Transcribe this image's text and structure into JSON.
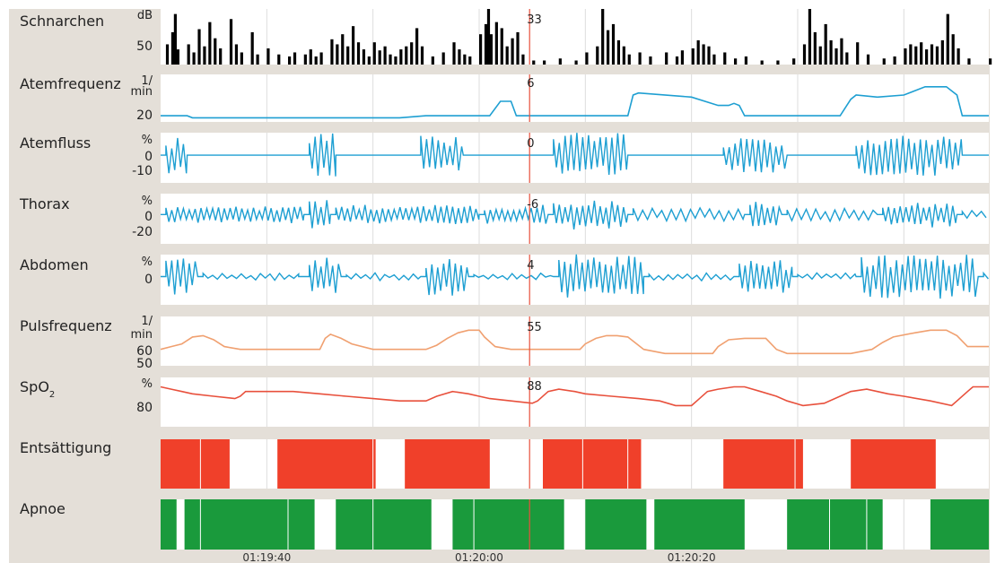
{
  "colors": {
    "panel_bg": "#e4dfd8",
    "plot_bg": "#ffffff",
    "grid": "#dcdcdc",
    "snore": "#000000",
    "blue": "#1e9fd2",
    "pulse": "#f0a070",
    "spo2": "#e8503c",
    "desat": "#f0402a",
    "apnea": "#1a9a3c",
    "cursor": "#e8503c"
  },
  "time_axis": {
    "labels": [
      "01:19:40",
      "01:20:00",
      "01:20:20"
    ],
    "label_x": [
      20,
      60,
      100
    ]
  },
  "cursor_x": 69.5,
  "chart_data": [
    {
      "type": "bar",
      "name": "Schnarchen",
      "unit": "dB",
      "ticks": [
        "50"
      ],
      "tick_values": [
        50
      ],
      "ylim": [
        40,
        95
      ],
      "cursor_value": "33",
      "bars": [
        [
          1,
          60
        ],
        [
          2,
          72
        ],
        [
          2.5,
          90
        ],
        [
          3,
          55
        ],
        [
          5,
          60
        ],
        [
          6,
          52
        ],
        [
          7,
          75
        ],
        [
          8,
          58
        ],
        [
          9,
          82
        ],
        [
          10,
          66
        ],
        [
          11,
          56
        ],
        [
          13,
          85
        ],
        [
          14,
          60
        ],
        [
          15,
          52
        ],
        [
          17,
          72
        ],
        [
          18,
          50
        ],
        [
          20,
          56
        ],
        [
          22,
          50
        ],
        [
          24,
          48
        ],
        [
          25,
          52
        ],
        [
          27,
          50
        ],
        [
          28,
          55
        ],
        [
          29,
          48
        ],
        [
          30,
          52
        ],
        [
          32,
          65
        ],
        [
          33,
          60
        ],
        [
          34,
          70
        ],
        [
          35,
          58
        ],
        [
          36,
          78
        ],
        [
          37,
          62
        ],
        [
          38,
          55
        ],
        [
          39,
          48
        ],
        [
          40,
          62
        ],
        [
          41,
          54
        ],
        [
          42,
          58
        ],
        [
          43,
          50
        ],
        [
          44,
          48
        ],
        [
          45,
          55
        ],
        [
          46,
          58
        ],
        [
          47,
          62
        ],
        [
          48,
          76
        ],
        [
          49,
          58
        ],
        [
          51,
          48
        ],
        [
          53,
          52
        ],
        [
          55,
          62
        ],
        [
          56,
          55
        ],
        [
          57,
          50
        ],
        [
          58,
          48
        ],
        [
          60,
          70
        ],
        [
          61,
          80
        ],
        [
          61.5,
          95
        ],
        [
          62,
          70
        ],
        [
          63,
          82
        ],
        [
          64,
          76
        ],
        [
          65,
          58
        ],
        [
          66,
          66
        ],
        [
          67,
          72
        ],
        [
          68,
          50
        ],
        [
          70,
          44
        ],
        [
          72,
          44
        ],
        [
          75,
          46
        ],
        [
          78,
          44
        ],
        [
          80,
          52
        ],
        [
          82,
          58
        ],
        [
          83,
          95
        ],
        [
          84,
          74
        ],
        [
          85,
          80
        ],
        [
          86,
          64
        ],
        [
          87,
          58
        ],
        [
          88,
          50
        ],
        [
          90,
          52
        ],
        [
          92,
          48
        ],
        [
          95,
          52
        ],
        [
          97,
          48
        ],
        [
          98,
          54
        ],
        [
          100,
          56
        ],
        [
          101,
          64
        ],
        [
          102,
          60
        ],
        [
          103,
          58
        ],
        [
          104,
          50
        ],
        [
          106,
          52
        ],
        [
          108,
          46
        ],
        [
          110,
          48
        ],
        [
          113,
          44
        ],
        [
          116,
          44
        ],
        [
          119,
          46
        ],
        [
          121,
          60
        ],
        [
          122,
          95
        ],
        [
          123,
          72
        ],
        [
          124,
          58
        ],
        [
          125,
          80
        ],
        [
          126,
          64
        ],
        [
          127,
          56
        ],
        [
          128,
          66
        ],
        [
          129,
          52
        ],
        [
          131,
          62
        ],
        [
          133,
          50
        ],
        [
          136,
          46
        ],
        [
          138,
          48
        ],
        [
          140,
          56
        ],
        [
          141,
          60
        ],
        [
          142,
          58
        ],
        [
          143,
          62
        ],
        [
          144,
          55
        ],
        [
          145,
          60
        ],
        [
          146,
          58
        ],
        [
          147,
          64
        ],
        [
          148,
          90
        ],
        [
          149,
          70
        ],
        [
          150,
          56
        ],
        [
          152,
          46
        ],
        [
          156,
          46
        ]
      ]
    },
    {
      "type": "line",
      "name": "Atemfrequenz",
      "unit": "1/\nmin",
      "ticks": [
        "20"
      ],
      "tick_values": [
        20
      ],
      "ylim": [
        17,
        40
      ],
      "cursor_value": "6",
      "x": [
        0,
        5,
        6,
        45,
        50,
        62,
        64,
        66,
        67,
        68,
        72,
        75,
        80,
        85,
        88,
        89,
        90,
        100,
        105,
        107,
        108,
        109,
        110,
        112,
        128,
        130,
        131,
        135,
        140,
        144,
        148,
        150,
        151,
        153,
        156
      ],
      "y": [
        20,
        20,
        19,
        19,
        20,
        20,
        27,
        27,
        20,
        20,
        20,
        20,
        20,
        20,
        20,
        30,
        31,
        29,
        25,
        25,
        26,
        25,
        20,
        20,
        20,
        28,
        30,
        29,
        30,
        34,
        34,
        30,
        20,
        20,
        20
      ]
    },
    {
      "type": "line",
      "name": "Atemfluss",
      "unit": "%",
      "ticks": [
        "0",
        "-10"
      ],
      "tick_values": [
        0,
        -10
      ],
      "ylim": [
        -16,
        13
      ],
      "cursor_value": "0",
      "bursts": [
        [
          1,
          5,
          10
        ],
        [
          28,
          33,
          12
        ],
        [
          49,
          57,
          11
        ],
        [
          74,
          88,
          13
        ],
        [
          106,
          118,
          10
        ],
        [
          131,
          151,
          12
        ]
      ],
      "baseline": [
        [
          0,
          0
        ],
        [
          20,
          0
        ],
        [
          40,
          0
        ],
        [
          64,
          0
        ],
        [
          70,
          0
        ],
        [
          90,
          0
        ],
        [
          100,
          0
        ],
        [
          104,
          0
        ],
        [
          125,
          0
        ],
        [
          156,
          0
        ]
      ]
    },
    {
      "type": "line",
      "name": "Thorax",
      "unit": "%",
      "ticks": [
        "0",
        "-20"
      ],
      "tick_values": [
        0,
        -20
      ],
      "ylim": [
        -28,
        20
      ],
      "cursor_value": "-6",
      "bursts": [
        [
          1,
          27,
          8
        ],
        [
          28,
          32,
          14
        ],
        [
          33,
          60,
          9
        ],
        [
          61,
          73,
          9
        ],
        [
          74,
          88,
          14
        ],
        [
          89,
          110,
          6
        ],
        [
          111,
          117,
          12
        ],
        [
          118,
          135,
          6
        ],
        [
          136,
          150,
          12
        ],
        [
          151,
          156,
          4
        ]
      ]
    },
    {
      "type": "line",
      "name": "Abdomen",
      "unit": "%",
      "ticks": [
        "0"
      ],
      "tick_values": [
        0
      ],
      "ylim": [
        -18,
        14
      ],
      "cursor_value": "4",
      "bursts": [
        [
          1,
          7,
          12
        ],
        [
          8,
          26,
          2
        ],
        [
          28,
          34,
          12
        ],
        [
          35,
          49,
          2
        ],
        [
          50,
          58,
          12
        ],
        [
          59,
          74,
          2
        ],
        [
          75,
          91,
          14
        ],
        [
          92,
          108,
          2
        ],
        [
          109,
          119,
          10
        ],
        [
          120,
          131,
          2
        ],
        [
          132,
          154,
          14
        ],
        [
          155,
          156,
          2
        ]
      ]
    },
    {
      "type": "line",
      "name": "Pulsfrequenz",
      "unit": "1/\nmin",
      "ticks": [
        "60",
        "50"
      ],
      "tick_values": [
        60,
        50
      ],
      "ylim": [
        46,
        82
      ],
      "cursor_value": "55",
      "x": [
        0,
        2,
        4,
        6,
        8,
        10,
        12,
        15,
        20,
        25,
        30,
        31,
        32,
        34,
        36,
        40,
        45,
        50,
        52,
        54,
        56,
        58,
        60,
        61,
        63,
        66,
        70,
        75,
        79,
        80,
        82,
        84,
        86,
        88,
        91,
        95,
        100,
        104,
        105,
        107,
        110,
        114,
        116,
        118,
        121,
        125,
        130,
        134,
        136,
        138,
        142,
        145,
        148,
        150,
        152,
        156
      ],
      "y": [
        58,
        60,
        62,
        67,
        68,
        65,
        60,
        58,
        58,
        58,
        58,
        66,
        69,
        66,
        62,
        58,
        58,
        58,
        61,
        66,
        70,
        72,
        72,
        67,
        60,
        58,
        58,
        58,
        58,
        62,
        66,
        68,
        68,
        67,
        58,
        55,
        55,
        55,
        60,
        65,
        66,
        66,
        58,
        55,
        55,
        55,
        55,
        58,
        63,
        67,
        70,
        72,
        72,
        68,
        60,
        60
      ]
    },
    {
      "type": "line",
      "name": "SpO2",
      "unit": "%",
      "ticks": [
        "80"
      ],
      "tick_values": [
        80
      ],
      "ylim": [
        75,
        96
      ],
      "cursor_value": "88",
      "x": [
        0,
        2,
        4,
        6,
        10,
        14,
        15,
        16,
        20,
        25,
        30,
        35,
        40,
        45,
        50,
        52,
        55,
        58,
        60,
        62,
        66,
        70,
        71,
        73,
        75,
        78,
        80,
        85,
        90,
        94,
        97,
        100,
        101,
        103,
        105,
        108,
        110,
        113,
        116,
        118,
        121,
        125,
        130,
        133,
        135,
        137,
        140,
        145,
        149,
        150,
        152,
        153,
        156
      ],
      "y": [
        92,
        91,
        90,
        89,
        88,
        87,
        88,
        90,
        90,
        90,
        89,
        88,
        87,
        86,
        86,
        88,
        90,
        89,
        88,
        87,
        86,
        85,
        86,
        90,
        91,
        90,
        89,
        88,
        87,
        86,
        84,
        84,
        86,
        90,
        91,
        92,
        92,
        90,
        88,
        86,
        84,
        85,
        90,
        91,
        90,
        89,
        88,
        86,
        84,
        86,
        90,
        92,
        92
      ]
    },
    {
      "type": "bar",
      "name": "Entsättigung",
      "segments": [
        [
          0,
          13
        ],
        [
          22,
          40.5
        ],
        [
          46,
          62
        ],
        [
          72,
          90.5
        ],
        [
          106,
          121
        ],
        [
          130,
          146
        ]
      ],
      "splits": [
        7.5,
        40,
        79.5,
        88,
        119.5
      ]
    },
    {
      "type": "bar",
      "name": "Apnoe",
      "segments": [
        [
          0,
          3
        ],
        [
          4.5,
          29
        ],
        [
          33,
          51
        ],
        [
          55,
          76
        ],
        [
          80,
          91.5
        ],
        [
          93,
          110
        ],
        [
          118,
          136
        ],
        [
          145,
          156
        ]
      ],
      "splits": [
        7.5,
        24,
        40,
        59,
        92,
        126,
        133
      ]
    }
  ],
  "tracks": [
    {
      "label": "Schnarchen"
    },
    {
      "label": "Atemfrequenz"
    },
    {
      "label": "Atemfluss"
    },
    {
      "label": "Thorax"
    },
    {
      "label": "Abdomen"
    },
    {
      "label": "Pulsfrequenz"
    },
    {
      "label": "SpO",
      "sub": "2"
    },
    {
      "label": "Entsättigung"
    },
    {
      "label": "Apnoe"
    }
  ]
}
